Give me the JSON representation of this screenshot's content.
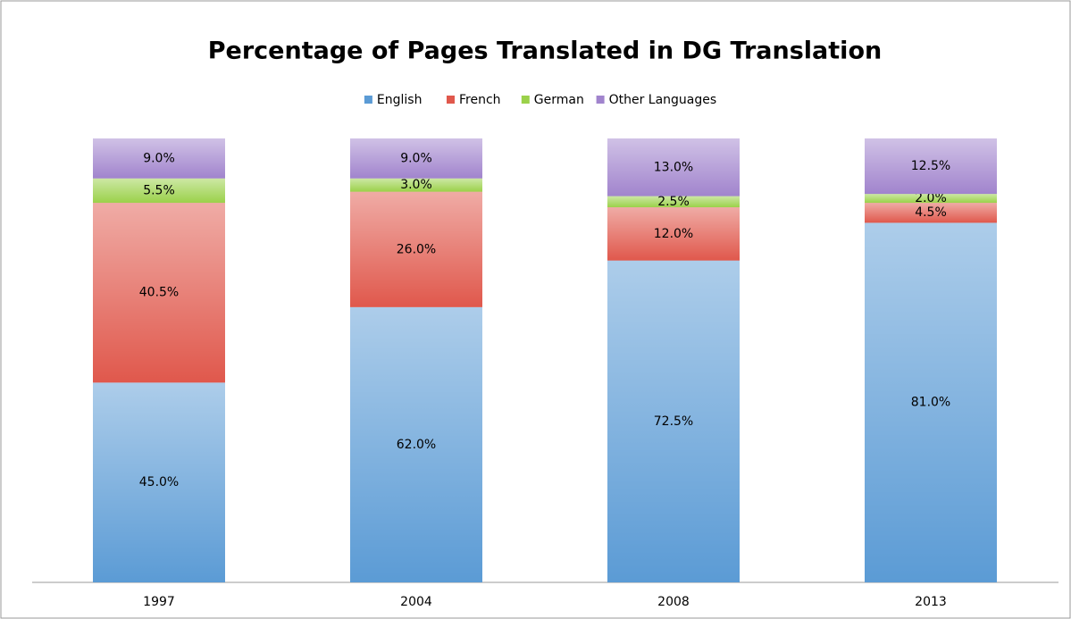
{
  "chart_data": {
    "type": "stacked_bar",
    "title": "Percentage of Pages Translated in DG Translation",
    "categories": [
      "1997",
      "2004",
      "2008",
      "2013"
    ],
    "ylim": [
      0,
      100
    ],
    "series": [
      {
        "name": "English",
        "color": "#5b9bd5",
        "values": [
          45,
          62,
          72.5,
          81
        ],
        "value_labels": [
          "45.0%",
          "62.0%",
          "72.5%",
          "81.0%"
        ]
      },
      {
        "name": "French",
        "color": "#e0584c",
        "values": [
          40.5,
          26,
          12,
          4.5
        ],
        "value_labels": [
          "40.5%",
          "26.0%",
          "12.0%",
          "4.5%"
        ]
      },
      {
        "name": "German",
        "color": "#9bd14a",
        "values": [
          5.5,
          3,
          2.5,
          2
        ],
        "value_labels": [
          "5.5%",
          "3.0%",
          "2.5%",
          "2.0%"
        ]
      },
      {
        "name": "Other Languages",
        "color": "#a184cd",
        "values": [
          9,
          9,
          13,
          12.5
        ],
        "value_labels": [
          "9.0%",
          "9.0%",
          "13.0%",
          "12.5%"
        ]
      }
    ]
  }
}
